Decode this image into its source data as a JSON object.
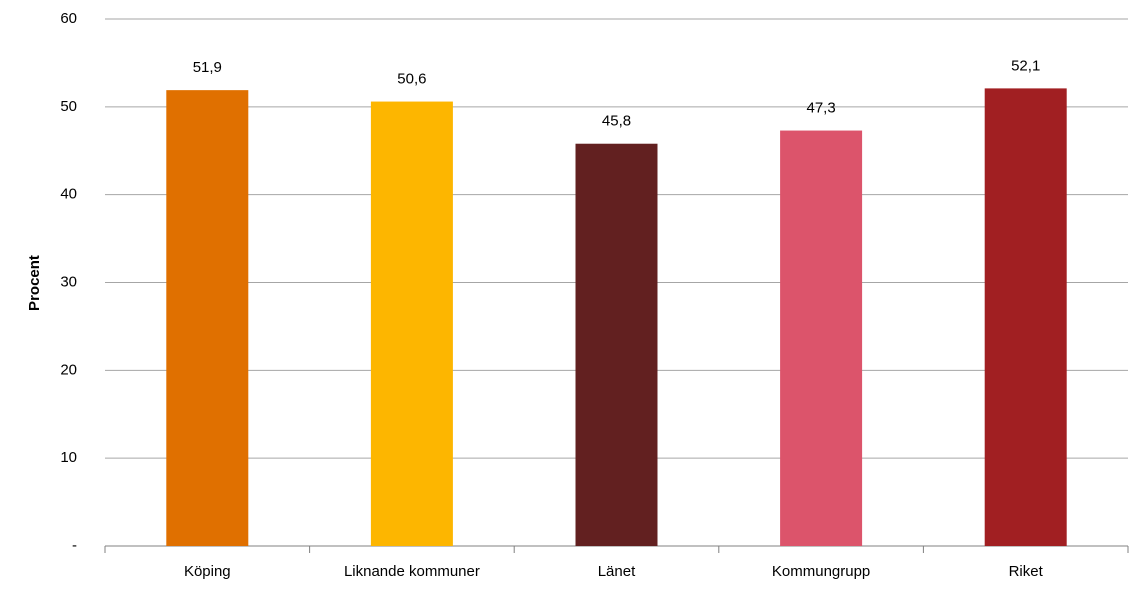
{
  "chart_data": {
    "type": "bar",
    "ylabel": "Procent",
    "categories": [
      "Köping",
      "Liknande kommuner",
      "Länet",
      "Kommungrupp",
      "Riket"
    ],
    "values": [
      51.9,
      50.6,
      45.8,
      47.3,
      52.1
    ],
    "value_labels": [
      "51,9",
      "50,6",
      "45,8",
      "47,3",
      "52,1"
    ],
    "colors": [
      "#e07000",
      "#fdb600",
      "#622020",
      "#dc546b",
      "#a11f22"
    ],
    "ylim": [
      0,
      60
    ],
    "yticks": [
      {
        "value": 0,
        "label": "-"
      },
      10,
      20,
      30,
      40,
      50,
      60
    ],
    "grid": true
  }
}
